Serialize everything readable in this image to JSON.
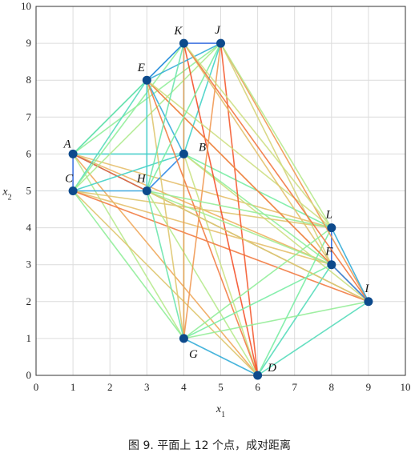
{
  "caption": "图 9. 平面上 12 个点，成对距离",
  "chart_data": {
    "type": "scatter",
    "title": "",
    "xlabel": "x1",
    "ylabel": "x2",
    "xlim": [
      0,
      10
    ],
    "ylim": [
      0,
      10
    ],
    "grid": true,
    "xticks": [
      "0",
      "1",
      "2",
      "3",
      "4",
      "5",
      "6",
      "7",
      "8",
      "9",
      "10"
    ],
    "yticks": [
      "0",
      "1",
      "2",
      "3",
      "4",
      "5",
      "6",
      "7",
      "8",
      "9",
      "10"
    ],
    "point_color": "#0d4a8c",
    "colormap": [
      "#3b1fd6",
      "#2a8fe6",
      "#3fd0c8",
      "#7ff0a0",
      "#c6e889",
      "#f0b060",
      "#f4512a"
    ],
    "points": [
      {
        "name": "A",
        "x": 1,
        "y": 6
      },
      {
        "name": "B",
        "x": 4,
        "y": 6
      },
      {
        "name": "C",
        "x": 1,
        "y": 5
      },
      {
        "name": "D",
        "x": 6,
        "y": 0
      },
      {
        "name": "E",
        "x": 3,
        "y": 8
      },
      {
        "name": "F",
        "x": 8,
        "y": 3
      },
      {
        "name": "G",
        "x": 4,
        "y": 1
      },
      {
        "name": "H",
        "x": 3,
        "y": 5
      },
      {
        "name": "I",
        "x": 9,
        "y": 2
      },
      {
        "name": "J",
        "x": 5,
        "y": 9
      },
      {
        "name": "K",
        "x": 4,
        "y": 9
      },
      {
        "name": "L",
        "x": 8,
        "y": 4
      }
    ]
  }
}
